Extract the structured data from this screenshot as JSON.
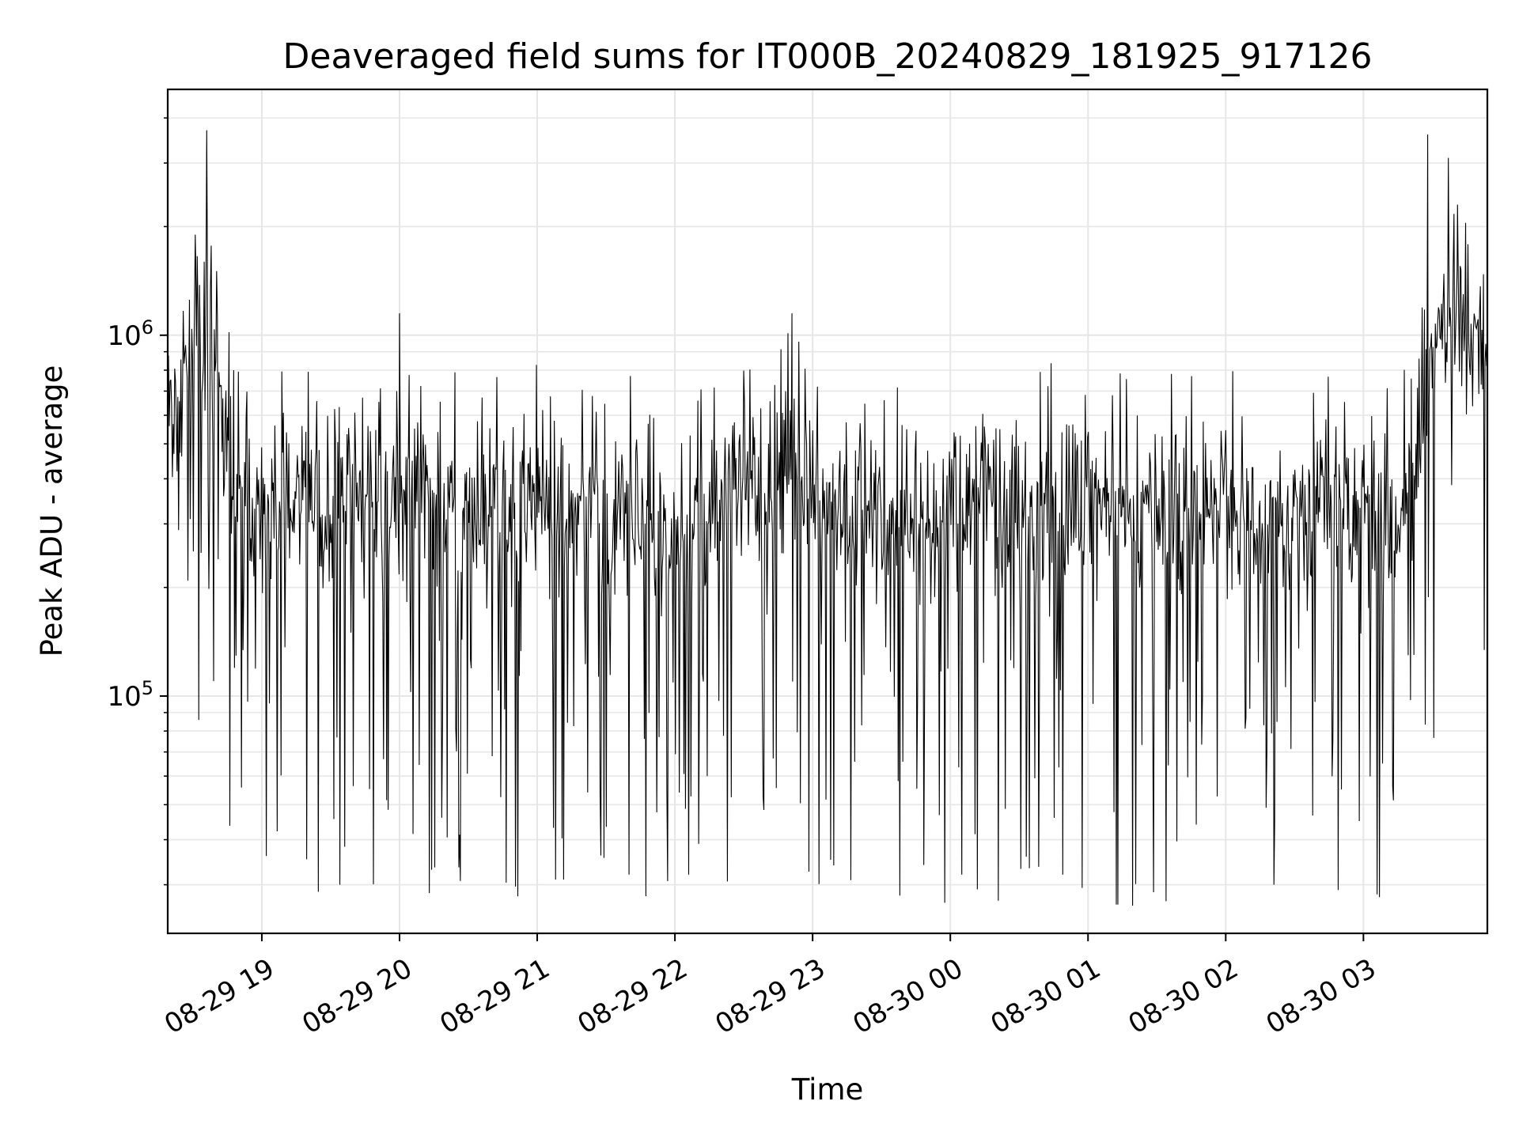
{
  "chart_data": {
    "type": "line",
    "title": "Deaveraged field sums for IT000B_20240829_181925_917126",
    "xlabel": "Time",
    "ylabel": "Peak ADU - average",
    "yscale": "log",
    "ylim": [
      22000,
      4800000
    ],
    "xlim": [
      "2024-08-29 18:19",
      "2024-08-30 03:54"
    ],
    "grid": true,
    "x_ticks": [
      "08-29 19",
      "08-29 20",
      "08-29 21",
      "08-29 22",
      "08-29 23",
      "08-30 00",
      "08-30 01",
      "08-30 02",
      "08-30 03"
    ],
    "y_ticks": [
      {
        "base": "10",
        "exp": "5",
        "value": 100000
      },
      {
        "base": "10",
        "exp": "6",
        "value": 1000000
      }
    ],
    "line_color": "#000000",
    "grid_color": "#e6e6e6",
    "series": [
      {
        "x": [
          "2024-08-29 18:19",
          "2024-08-29 18:26",
          "2024-08-29 18:30",
          "2024-08-29 18:37",
          "2024-08-29 18:41",
          "2024-08-29 18:45",
          "2024-08-29 18:50",
          "2024-08-29 18:56",
          "2024-08-29 19:03",
          "2024-08-29 19:10",
          "2024-08-29 19:20",
          "2024-08-29 19:30",
          "2024-08-29 19:40",
          "2024-08-29 19:50",
          "2024-08-29 20:00",
          "2024-08-29 20:10",
          "2024-08-29 20:20",
          "2024-08-29 20:30",
          "2024-08-29 20:40",
          "2024-08-29 20:50",
          "2024-08-29 21:00",
          "2024-08-29 21:10",
          "2024-08-29 21:20",
          "2024-08-29 21:30",
          "2024-08-29 21:40",
          "2024-08-29 21:50",
          "2024-08-29 22:00",
          "2024-08-29 22:10",
          "2024-08-29 22:20",
          "2024-08-29 22:30",
          "2024-08-29 22:40",
          "2024-08-29 22:50",
          "2024-08-29 23:00",
          "2024-08-29 23:10",
          "2024-08-29 23:20",
          "2024-08-29 23:30",
          "2024-08-29 23:40",
          "2024-08-29 23:50",
          "2024-08-30 00:00",
          "2024-08-30 00:10",
          "2024-08-30 00:20",
          "2024-08-30 00:30",
          "2024-08-30 00:40",
          "2024-08-30 00:50",
          "2024-08-30 01:00",
          "2024-08-30 01:10",
          "2024-08-30 01:20",
          "2024-08-30 01:30",
          "2024-08-30 01:40",
          "2024-08-30 01:50",
          "2024-08-30 02:00",
          "2024-08-30 02:10",
          "2024-08-30 02:20",
          "2024-08-30 02:30",
          "2024-08-30 02:40",
          "2024-08-30 02:50",
          "2024-08-30 03:00",
          "2024-08-30 03:10",
          "2024-08-30 03:20",
          "2024-08-30 03:25",
          "2024-08-30 03:30",
          "2024-08-30 03:35",
          "2024-08-30 03:40",
          "2024-08-30 03:45",
          "2024-08-30 03:50",
          "2024-08-30 03:54"
        ],
        "y": [
          550000,
          700000,
          900000,
          1000000,
          800000,
          450000,
          380000,
          350000,
          340000,
          330000,
          350000,
          340000,
          360000,
          330000,
          370000,
          350000,
          360000,
          340000,
          350000,
          330000,
          340000,
          320000,
          330000,
          300000,
          310000,
          290000,
          280000,
          300000,
          330000,
          350000,
          400000,
          480000,
          360000,
          350000,
          330000,
          320000,
          300000,
          310000,
          330000,
          340000,
          320000,
          330000,
          340000,
          330000,
          340000,
          330000,
          320000,
          330000,
          310000,
          320000,
          330000,
          310000,
          300000,
          320000,
          330000,
          340000,
          350000,
          330000,
          340000,
          450000,
          900000,
          1050000,
          1000000,
          950000,
          980000,
          950000
        ],
        "spikes_high": [
          {
            "x": "2024-08-29 18:36",
            "y": 3700000
          },
          {
            "x": "2024-08-29 18:39",
            "y": 3000000
          },
          {
            "x": "2024-08-29 18:31",
            "y": 1900000
          },
          {
            "x": "2024-08-29 20:00",
            "y": 1150000
          },
          {
            "x": "2024-08-29 22:51",
            "y": 1150000
          },
          {
            "x": "2024-08-30 03:28",
            "y": 3600000
          },
          {
            "x": "2024-08-30 03:37",
            "y": 3100000
          },
          {
            "x": "2024-08-30 03:41",
            "y": 2300000
          }
        ],
        "spikes_low": [
          {
            "x": "2024-08-29 18:39",
            "y": 110000
          },
          {
            "x": "2024-08-29 19:34",
            "y": 30000
          },
          {
            "x": "2024-08-29 20:14",
            "y": 33000
          },
          {
            "x": "2024-08-29 21:08",
            "y": 31000
          },
          {
            "x": "2024-08-29 21:40",
            "y": 32000
          },
          {
            "x": "2024-08-29 22:06",
            "y": 32000
          },
          {
            "x": "2024-08-29 23:38",
            "y": 28000
          },
          {
            "x": "2024-08-30 00:05",
            "y": 32000
          },
          {
            "x": "2024-08-30 00:49",
            "y": 32000
          },
          {
            "x": "2024-08-30 01:34",
            "y": 27000
          },
          {
            "x": "2024-08-30 02:21",
            "y": 30000
          },
          {
            "x": "2024-08-30 02:49",
            "y": 29000
          },
          {
            "x": "2024-08-30 03:22",
            "y": 130000
          }
        ]
      }
    ]
  }
}
